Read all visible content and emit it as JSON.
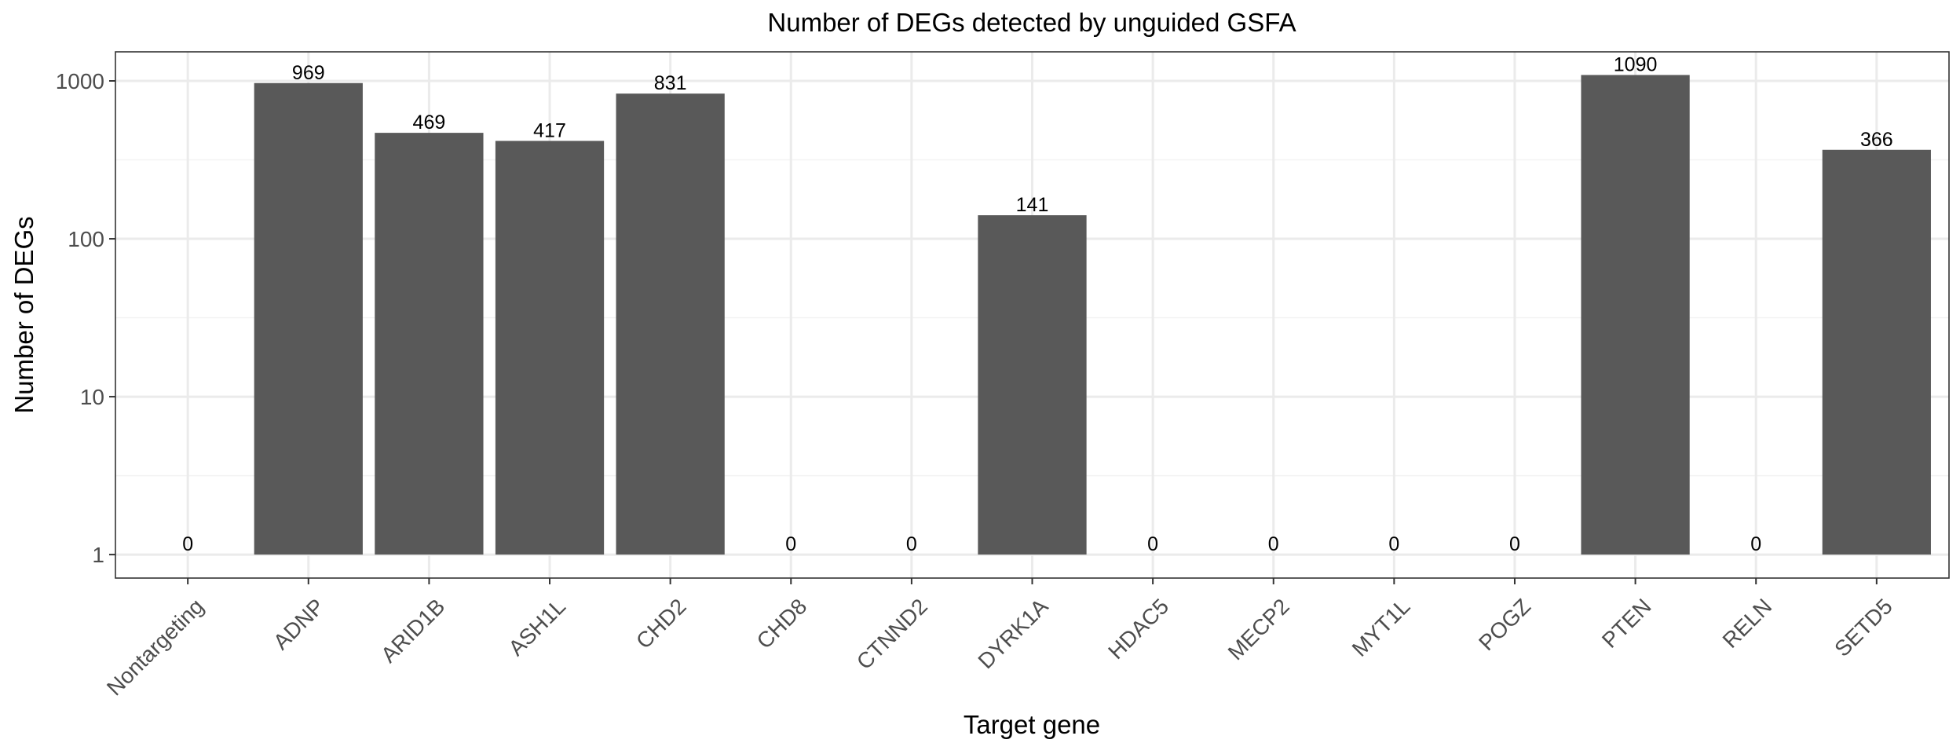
{
  "chart_data": {
    "type": "bar",
    "title": "Number of DEGs detected by unguided GSFA",
    "xlabel": "Target gene",
    "ylabel": "Number of DEGs",
    "y_scale": "log10",
    "ylim": [
      0.71,
      1528
    ],
    "y_ticks": [
      1,
      10,
      100,
      1000
    ],
    "y_tick_labels": [
      "1",
      "10",
      "100",
      "1000"
    ],
    "grid": true,
    "bar_color": "#595959",
    "categories": [
      "Nontargeting",
      "ADNP",
      "ARID1B",
      "ASH1L",
      "CHD2",
      "CHD8",
      "CTNND2",
      "DYRK1A",
      "HDAC5",
      "MECP2",
      "MYT1L",
      "POGZ",
      "PTEN",
      "RELN",
      "SETD5"
    ],
    "values": [
      0,
      969,
      469,
      417,
      831,
      0,
      0,
      141,
      0,
      0,
      0,
      0,
      1090,
      0,
      366
    ],
    "data_labels": [
      "0",
      "969",
      "469",
      "417",
      "831",
      "0",
      "0",
      "141",
      "0",
      "0",
      "0",
      "0",
      "1090",
      "0",
      "366"
    ]
  }
}
